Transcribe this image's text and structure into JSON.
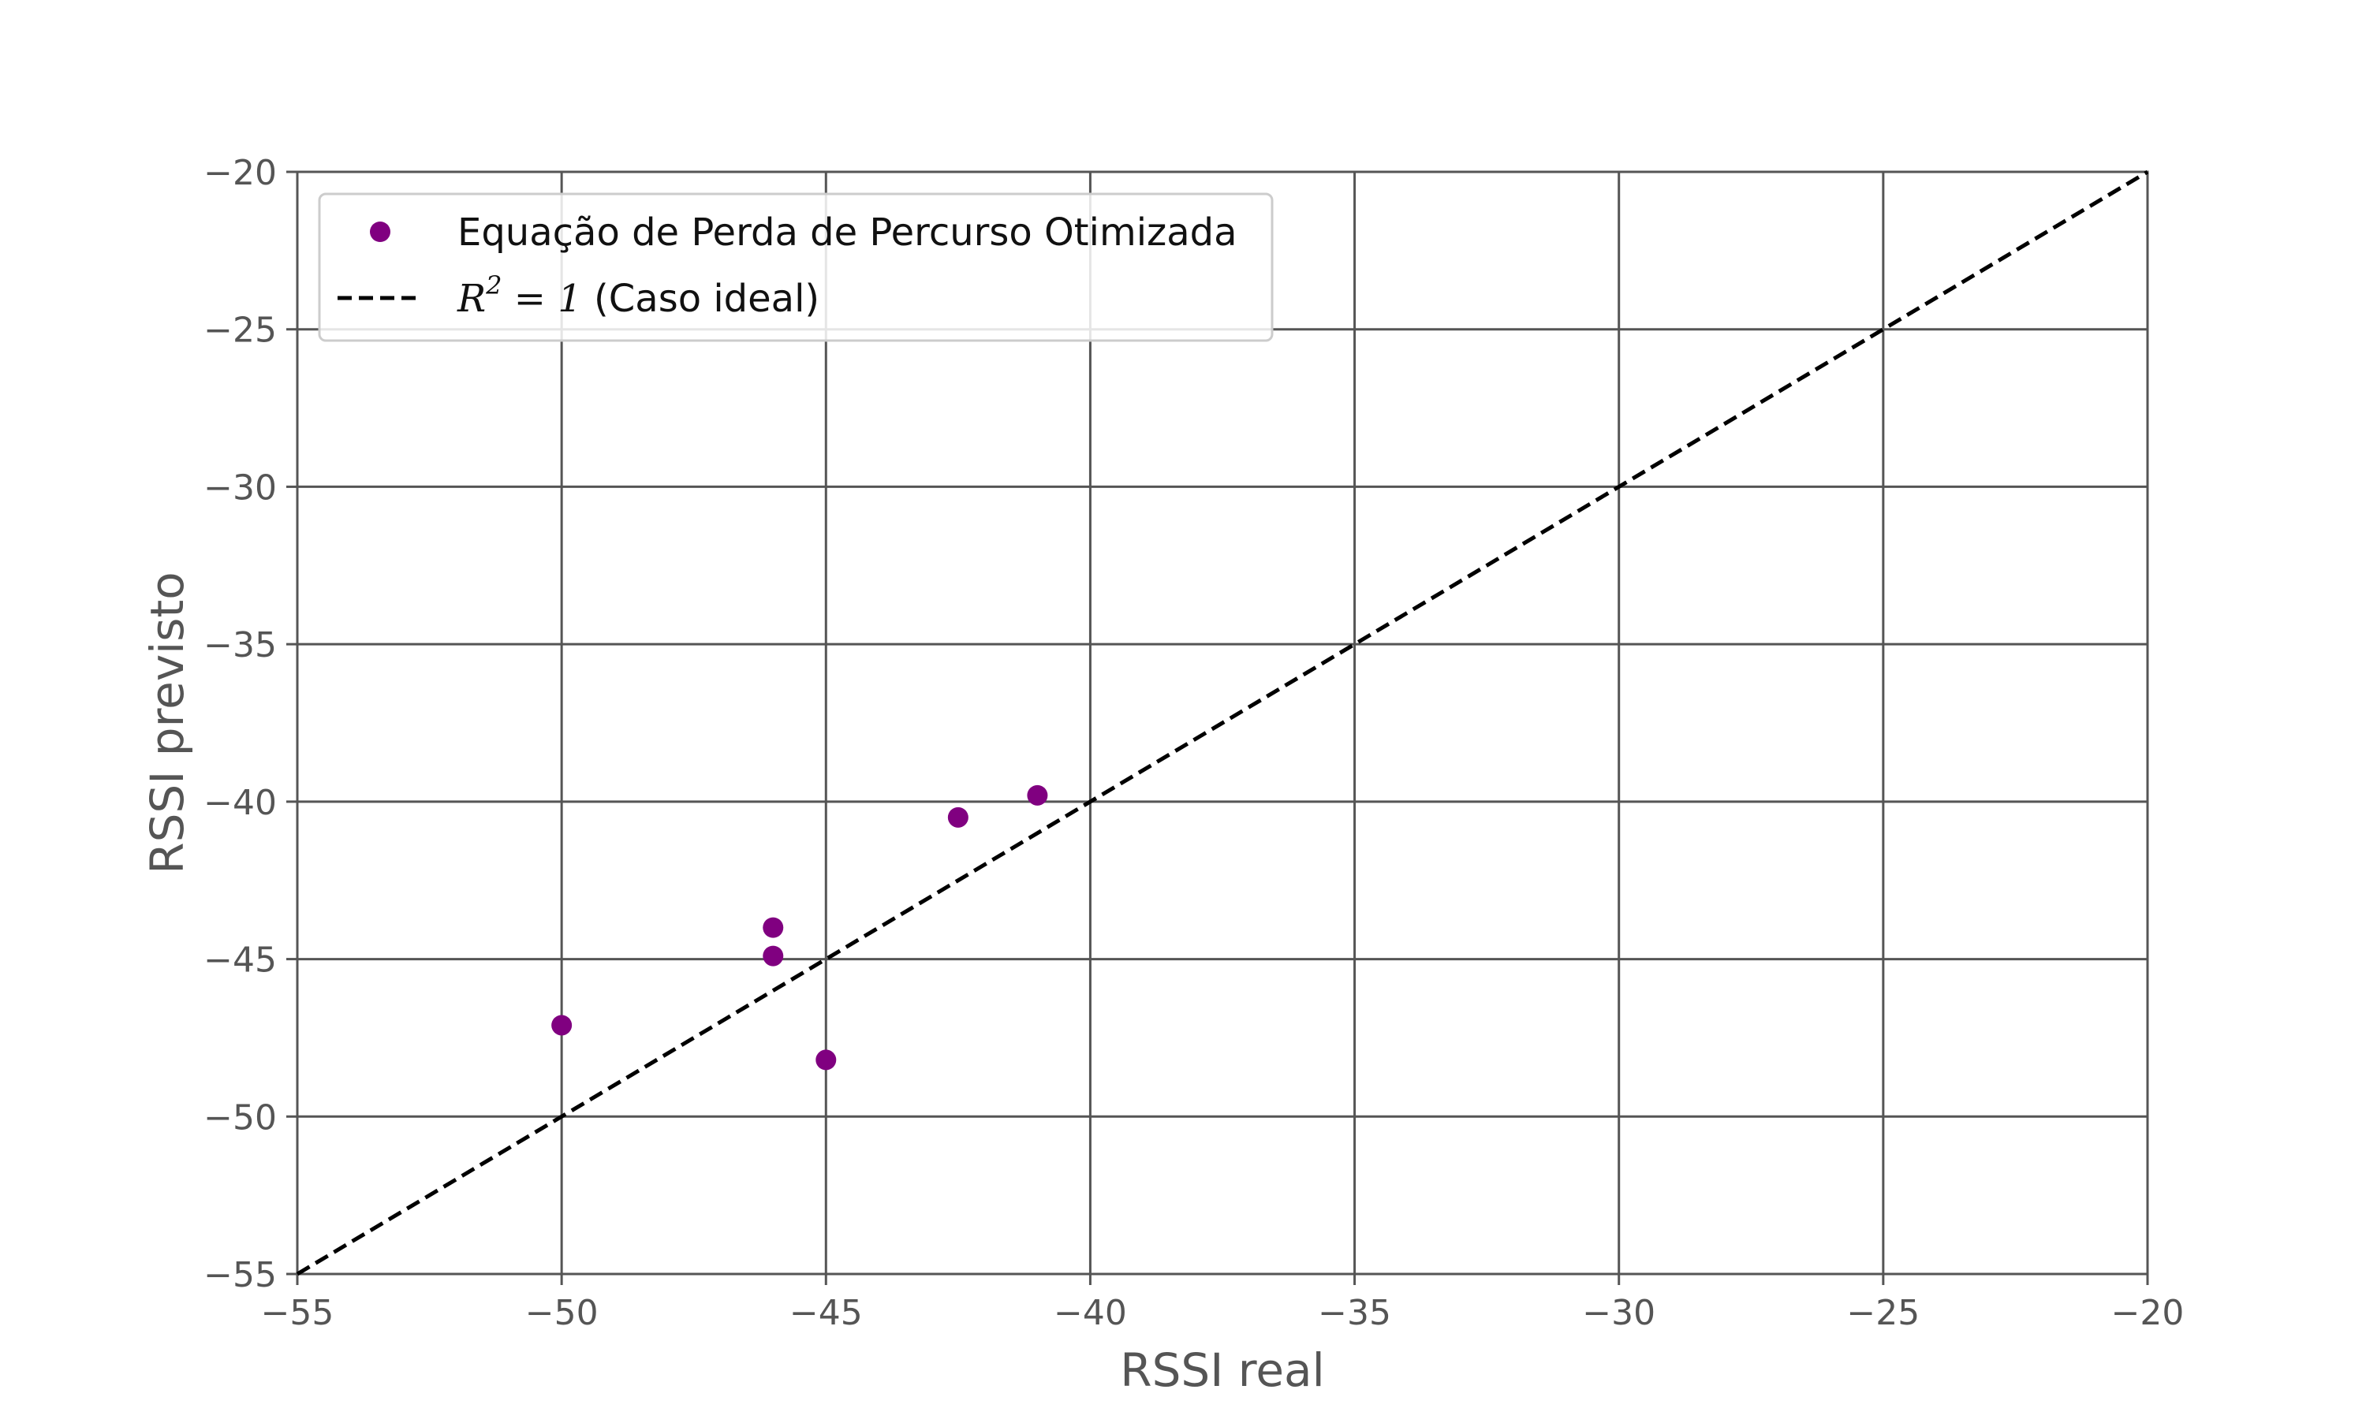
{
  "chart_data": {
    "type": "scatter",
    "xlabel": "RSSI real",
    "ylabel": "RSSI previsto",
    "xlim": [
      -55,
      -20
    ],
    "ylim": [
      -55,
      -20
    ],
    "x_ticks": [
      "−55",
      "−50",
      "−45",
      "−40",
      "−35",
      "−30",
      "−25",
      "−20"
    ],
    "y_ticks": [
      "−55",
      "−50",
      "−45",
      "−40",
      "−35",
      "−30",
      "−25",
      "−20"
    ],
    "x_tick_values": [
      -55,
      -50,
      -45,
      -40,
      -35,
      -30,
      -25,
      -20
    ],
    "y_tick_values": [
      -55,
      -50,
      -45,
      -40,
      -35,
      -30,
      -25,
      -20
    ],
    "grid": true,
    "legend_position": "top-left",
    "series": [
      {
        "name": "Equação de Perda de Percurso Otimizada",
        "kind": "scatter",
        "color": "#800080",
        "x": [
          -50,
          -46,
          -46,
          -45,
          -42.5,
          -41
        ],
        "y": [
          -47.1,
          -44.0,
          -44.9,
          -48.2,
          -40.5,
          -39.8
        ]
      }
    ],
    "reference_line": {
      "legend_prefix": "R",
      "legend_sup": "2",
      "legend_math_rest": " = 1",
      "legend_suffix": " (Caso ideal)",
      "style": "dashed",
      "color": "#000000",
      "x": [
        -55,
        -20
      ],
      "y": [
        -55,
        -20
      ]
    },
    "colors": {
      "axis": "#555555",
      "grid": "#555555",
      "legend_border": "#cccccc"
    }
  }
}
